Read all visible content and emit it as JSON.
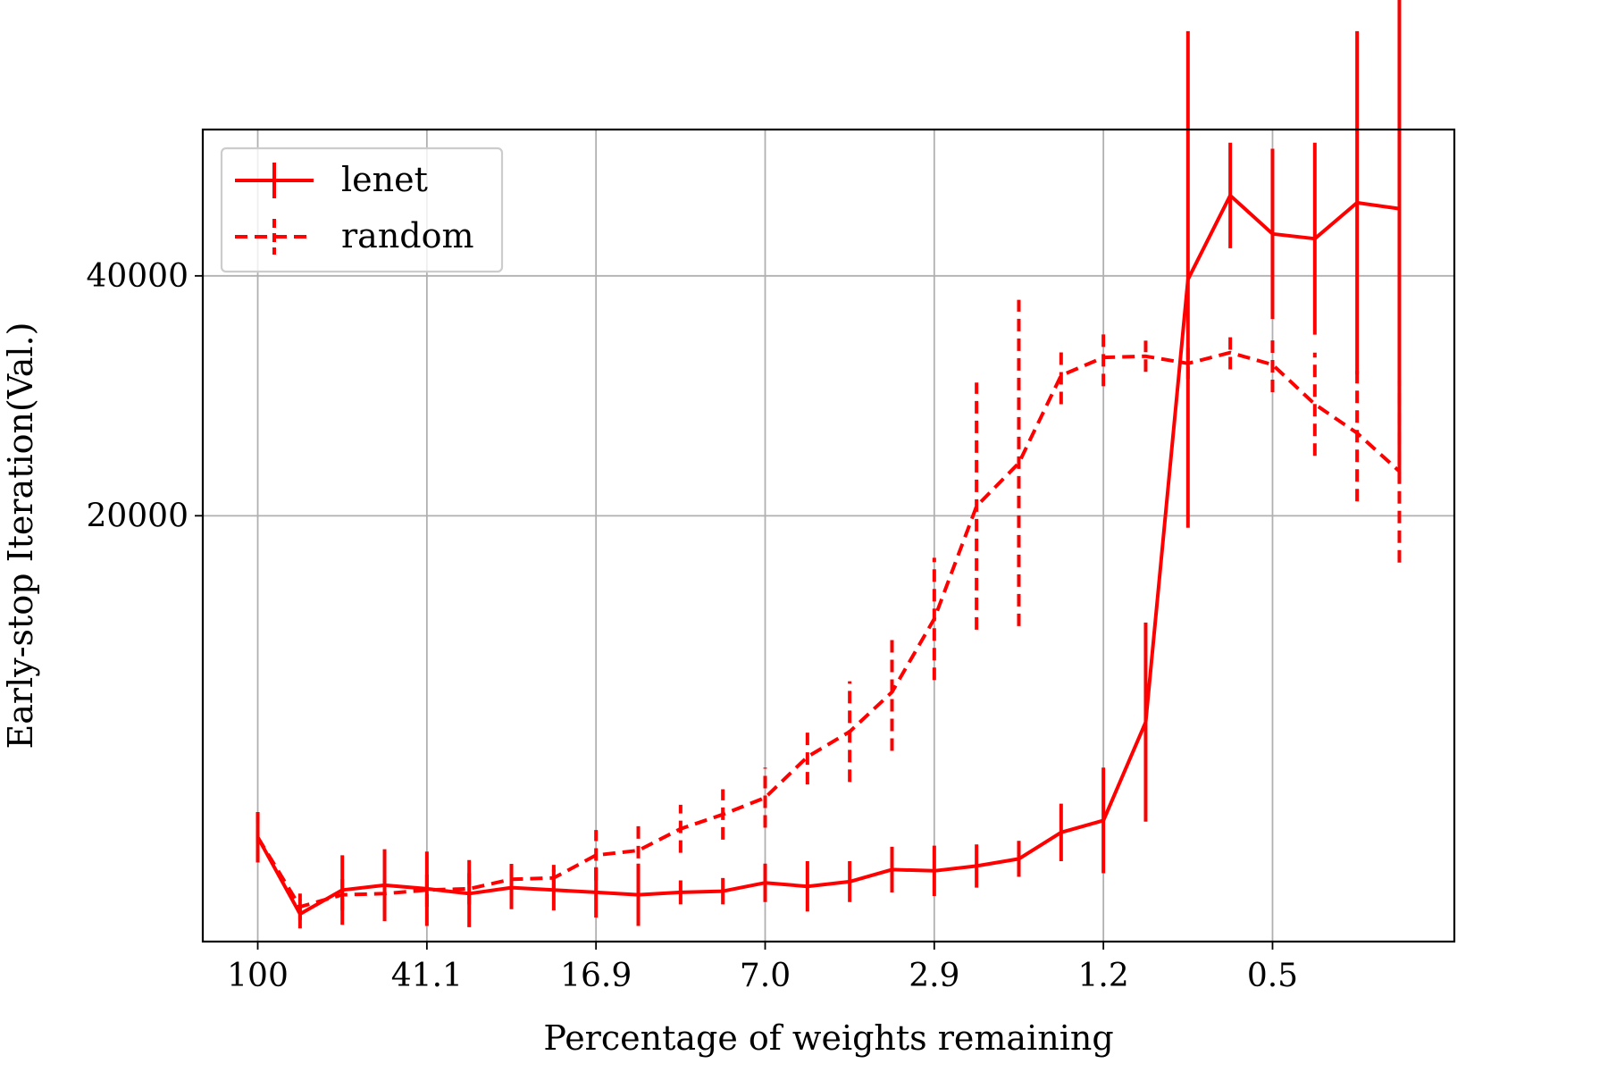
{
  "chart_data": {
    "type": "line",
    "title": "",
    "xlabel": "Percentage of weights remaining",
    "ylabel": "Early-stop Iteration(Val.)",
    "x_positions": [
      0,
      1,
      2,
      3,
      4,
      5,
      6,
      7,
      8,
      9,
      10,
      11,
      12,
      13,
      14,
      15,
      16,
      17,
      18,
      19,
      20,
      21,
      22,
      23,
      24,
      25,
      26,
      27
    ],
    "x_ticks": [
      {
        "pos": 0,
        "label": "100"
      },
      {
        "pos": 4,
        "label": "41.1"
      },
      {
        "pos": 8,
        "label": "16.9"
      },
      {
        "pos": 12,
        "label": "7.0"
      },
      {
        "pos": 16,
        "label": "2.9"
      },
      {
        "pos": 20,
        "label": "1.2"
      },
      {
        "pos": 24,
        "label": "0.5"
      }
    ],
    "y_ticks": [
      {
        "value": 20000,
        "label": "20000"
      },
      {
        "value": 40000,
        "label": "40000"
      }
    ],
    "xlim": [
      -1.3,
      28.3
    ],
    "ylim": [
      -15500,
      52200
    ],
    "grid": true,
    "legend_position": "top-left",
    "series": [
      {
        "name": "lenet",
        "color": "#ff0000",
        "linestyle": "solid",
        "values": [
          -6800,
          -13200,
          -11200,
          -10800,
          -11100,
          -11500,
          -11000,
          -11200,
          -11400,
          -11600,
          -11400,
          -11300,
          -10600,
          -10900,
          -10500,
          -9500,
          -9600,
          -9200,
          -8600,
          -6400,
          -5400,
          2800,
          39700,
          46700,
          43500,
          43100,
          46100,
          45600
        ],
        "errors": [
          2100,
          1200,
          2900,
          3000,
          3100,
          2800,
          1800,
          1700,
          2100,
          2600,
          1000,
          1100,
          1600,
          2100,
          1700,
          1900,
          2100,
          1800,
          1500,
          2400,
          4400,
          8300,
          20700,
          4400,
          7100,
          8000,
          14300,
          22800
        ]
      },
      {
        "name": "random",
        "color": "#ff0000",
        "linestyle": "dashed",
        "values": [
          -6800,
          -12600,
          -11600,
          -11500,
          -11200,
          -11100,
          -10300,
          -10200,
          -8300,
          -7900,
          -6100,
          -4900,
          -3500,
          -100,
          2000,
          5300,
          11400,
          20800,
          24400,
          31700,
          33200,
          33300,
          32700,
          33600,
          32600,
          29300,
          26900,
          23700
        ],
        "errors": [
          2100,
          1100,
          1300,
          1400,
          1400,
          1300,
          1400,
          1100,
          2100,
          2300,
          2000,
          2100,
          2500,
          2300,
          4200,
          4900,
          5100,
          10300,
          13600,
          2400,
          2400,
          1300,
          1300,
          1400,
          2300,
          4300,
          5700,
          7600
        ]
      }
    ]
  }
}
